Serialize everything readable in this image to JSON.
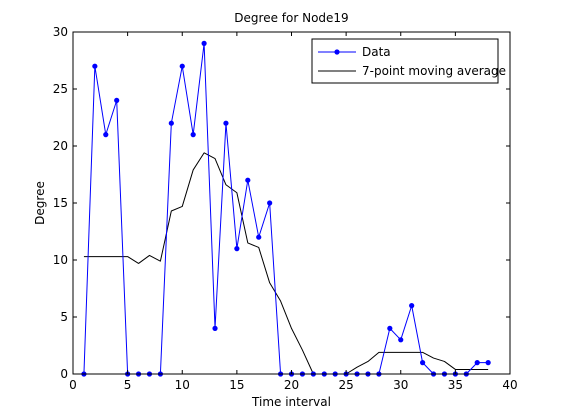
{
  "chart_data": {
    "type": "line",
    "title": "Degree for Node19",
    "xlabel": "Time interval",
    "ylabel": "Degree",
    "xlim": [
      0,
      40
    ],
    "ylim": [
      0,
      30
    ],
    "xticks": [
      0,
      5,
      10,
      15,
      20,
      25,
      30,
      35,
      40
    ],
    "yticks": [
      0,
      5,
      10,
      15,
      20,
      25,
      30
    ],
    "grid": false,
    "legend_position": "top-right",
    "series": [
      {
        "name": "Data",
        "color": "#0000ff",
        "marker": "dot",
        "x": [
          1,
          2,
          3,
          4,
          5,
          6,
          7,
          8,
          9,
          10,
          11,
          12,
          13,
          14,
          15,
          16,
          17,
          18,
          19,
          20,
          21,
          22,
          23,
          24,
          25,
          26,
          27,
          28,
          29,
          30,
          31,
          32,
          33,
          34,
          35,
          36,
          37,
          38
        ],
        "y": [
          0,
          27,
          21,
          24,
          0,
          0,
          0,
          0,
          22,
          27,
          21,
          29,
          4,
          22,
          11,
          17,
          12,
          15,
          0,
          0,
          0,
          0,
          0,
          0,
          0,
          0,
          0,
          0,
          4,
          3,
          6,
          1,
          0,
          0,
          0,
          0,
          1,
          1
        ]
      },
      {
        "name": "7-point moving average",
        "color": "#000000",
        "marker": "none",
        "x": [
          1,
          2,
          3,
          4,
          5,
          6,
          7,
          8,
          9,
          10,
          11,
          12,
          13,
          14,
          15,
          16,
          17,
          18,
          19,
          20,
          21,
          22,
          23,
          24,
          25,
          26,
          27,
          28,
          29,
          30,
          31,
          32,
          33,
          34,
          35,
          36,
          37,
          38
        ],
        "y": [
          10.3,
          10.3,
          10.3,
          10.3,
          10.3,
          9.7,
          10.4,
          9.9,
          14.3,
          14.7,
          17.9,
          19.4,
          18.9,
          16.6,
          15.9,
          11.5,
          11.1,
          8.0,
          6.4,
          4.0,
          2.1,
          0,
          0,
          0,
          0,
          0.6,
          1.1,
          1.9,
          1.9,
          1.9,
          1.9,
          1.9,
          1.4,
          1.1,
          0.4,
          0.4,
          0.4,
          0.4
        ]
      }
    ]
  }
}
